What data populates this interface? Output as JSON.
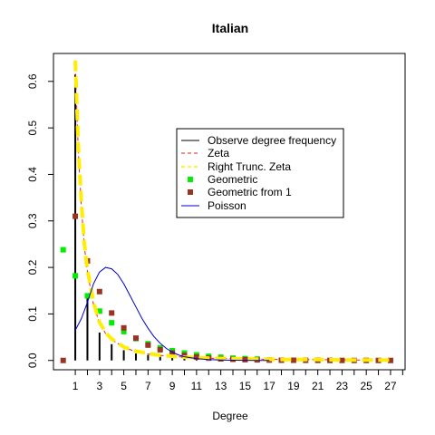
{
  "chart_data": {
    "type": "line",
    "title": "Italian",
    "xlabel": "Degree",
    "ylabel": "",
    "xlim": [
      -0.8,
      28.2
    ],
    "ylim": [
      -0.02,
      0.66
    ],
    "x_ticks": [
      1,
      3,
      5,
      7,
      9,
      11,
      13,
      15,
      17,
      19,
      21,
      23,
      25,
      27
    ],
    "y_ticks": [
      0.0,
      0.1,
      0.2,
      0.3,
      0.4,
      0.5,
      0.6
    ],
    "y_tick_labels": [
      "0.0",
      "0.1",
      "0.2",
      "0.3",
      "0.4",
      "0.5",
      "0.6"
    ],
    "legend_position": "center-right",
    "legend": [
      {
        "label": "Observe degree frequency",
        "style": "line",
        "color": "#000000",
        "dash": "none"
      },
      {
        "label": "Zeta",
        "style": "line",
        "color": "#dd2222",
        "dash": "dashed"
      },
      {
        "label": "Right Trunc. Zeta",
        "style": "line",
        "color": "#ffee00",
        "dash": "dashed"
      },
      {
        "label": "Geometric",
        "style": "square",
        "color": "#00ee00"
      },
      {
        "label": "Geometric from 1",
        "style": "square",
        "color": "#993322"
      },
      {
        "label": "Poisson",
        "style": "line",
        "color": "#0000cc",
        "dash": "none"
      }
    ],
    "series": [
      {
        "name": "Observe degree frequency",
        "kind": "spikes",
        "color": "#000000",
        "x": [
          1,
          2,
          3,
          4,
          5,
          6,
          7,
          8,
          9,
          10,
          11,
          12,
          13,
          14,
          15,
          16,
          17,
          18,
          19,
          20,
          21,
          22,
          23,
          24,
          25,
          26,
          27
        ],
        "y": [
          0.615,
          0.14,
          0.06,
          0.035,
          0.022,
          0.015,
          0.012,
          0.01,
          0.008,
          0.007,
          0.006,
          0.005,
          0.004,
          0.004,
          0.003,
          0.003,
          0.002,
          0.002,
          0.002,
          0.002,
          0.0015,
          0.0015,
          0.0015,
          0.001,
          0.001,
          0.001,
          0.001
        ]
      },
      {
        "name": "Zeta",
        "kind": "line",
        "color": "#dd2222",
        "dash": "dashed",
        "x": [
          1,
          1.25,
          1.5,
          1.75,
          2,
          2.5,
          3,
          3.5,
          4,
          5,
          6,
          7,
          8,
          9,
          10,
          12,
          14,
          16,
          18,
          20,
          22,
          24,
          26,
          27
        ],
        "y": [
          0.63,
          0.45,
          0.33,
          0.245,
          0.19,
          0.12,
          0.08,
          0.058,
          0.045,
          0.028,
          0.019,
          0.014,
          0.011,
          0.009,
          0.007,
          0.005,
          0.004,
          0.003,
          0.002,
          0.002,
          0.0015,
          0.001,
          0.001,
          0.001
        ]
      },
      {
        "name": "Right Trunc. Zeta",
        "kind": "line",
        "color": "#ffee00",
        "dash": "dashed",
        "x": [
          1,
          1.25,
          1.5,
          1.75,
          2,
          2.5,
          3,
          3.5,
          4,
          5,
          6,
          7,
          8,
          9,
          10,
          12,
          14,
          16,
          18,
          20,
          22,
          24,
          26,
          27
        ],
        "y": [
          0.645,
          0.46,
          0.34,
          0.25,
          0.195,
          0.125,
          0.082,
          0.06,
          0.046,
          0.029,
          0.02,
          0.015,
          0.011,
          0.009,
          0.007,
          0.005,
          0.004,
          0.003,
          0.002,
          0.002,
          0.0015,
          0.001,
          0.001,
          0.001
        ]
      },
      {
        "name": "Geometric",
        "kind": "points",
        "color": "#00ee00",
        "x": [
          0,
          1,
          2,
          3,
          4,
          5,
          6,
          7,
          8,
          9,
          10,
          11,
          12,
          13,
          14,
          15,
          16
        ],
        "y": [
          0.238,
          0.182,
          0.139,
          0.106,
          0.081,
          0.062,
          0.047,
          0.036,
          0.027,
          0.021,
          0.016,
          0.012,
          0.009,
          0.007,
          0.005,
          0.004,
          0.003
        ]
      },
      {
        "name": "Geometric from 1",
        "kind": "points",
        "color": "#993322",
        "x": [
          0,
          1,
          2,
          3,
          4,
          5,
          6,
          7,
          8,
          9,
          10,
          11,
          12,
          13,
          14,
          15,
          16,
          17,
          18,
          19,
          20,
          21,
          22,
          23,
          24,
          25,
          26,
          27
        ],
        "y": [
          0.0,
          0.31,
          0.214,
          0.148,
          0.102,
          0.07,
          0.048,
          0.033,
          0.023,
          0.016,
          0.011,
          0.0075,
          0.005,
          0.0035,
          0.0025,
          0.0017,
          0.0012,
          0.0008,
          0.0005,
          0.0004,
          0.0003,
          0.0002,
          0.0001,
          0.0001,
          0.0,
          0.0,
          0.0,
          0.0
        ]
      },
      {
        "name": "Poisson",
        "kind": "line",
        "color": "#0000cc",
        "dash": "none",
        "x": [
          1,
          1.5,
          2,
          2.5,
          3,
          3.5,
          4,
          4.5,
          5,
          5.5,
          6,
          6.5,
          7,
          7.5,
          8,
          8.5,
          9,
          9.5,
          10,
          11,
          12,
          13,
          14,
          15,
          16,
          17
        ],
        "y": [
          0.065,
          0.09,
          0.125,
          0.165,
          0.19,
          0.2,
          0.197,
          0.185,
          0.165,
          0.14,
          0.115,
          0.09,
          0.069,
          0.051,
          0.037,
          0.026,
          0.018,
          0.012,
          0.008,
          0.004,
          0.002,
          0.001,
          0.0005,
          0.0002,
          0.0001,
          0.0
        ]
      }
    ]
  }
}
